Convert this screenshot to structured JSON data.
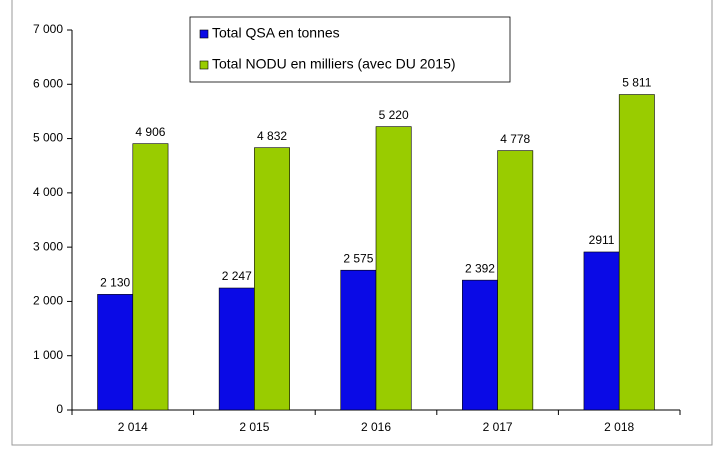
{
  "chart_data": {
    "type": "bar",
    "categories": [
      "2 014",
      "2 015",
      "2 016",
      "2 017",
      "2 018"
    ],
    "series": [
      {
        "name": "Total QSA en tonnes",
        "color": "#0a0ae6",
        "values": [
          2130,
          2247,
          2575,
          2392,
          2911
        ],
        "value_labels": [
          "2 130",
          "2 247",
          "2 575",
          "2 392",
          "2911"
        ]
      },
      {
        "name": "Total NODU en milliers (avec DU 2015)",
        "color": "#99cc00",
        "values": [
          4906,
          4832,
          5220,
          4778,
          5811
        ],
        "value_labels": [
          "4 906",
          "4 832",
          "5 220",
          "4 778",
          "5 811"
        ]
      }
    ],
    "ylim": [
      0,
      7000
    ],
    "yticks": [
      0,
      {
        "value": 1000,
        "label": "1 000"
      },
      {
        "value": 2000,
        "label": "2 000"
      },
      {
        "value": 3000,
        "label": "3 000"
      },
      {
        "value": 4000,
        "label": "4 000"
      },
      {
        "value": 5000,
        "label": "5 000"
      },
      {
        "value": 6000,
        "label": "6 000"
      },
      {
        "value": 7000,
        "label": "7 000"
      }
    ],
    "grid": false,
    "legend": "top"
  }
}
